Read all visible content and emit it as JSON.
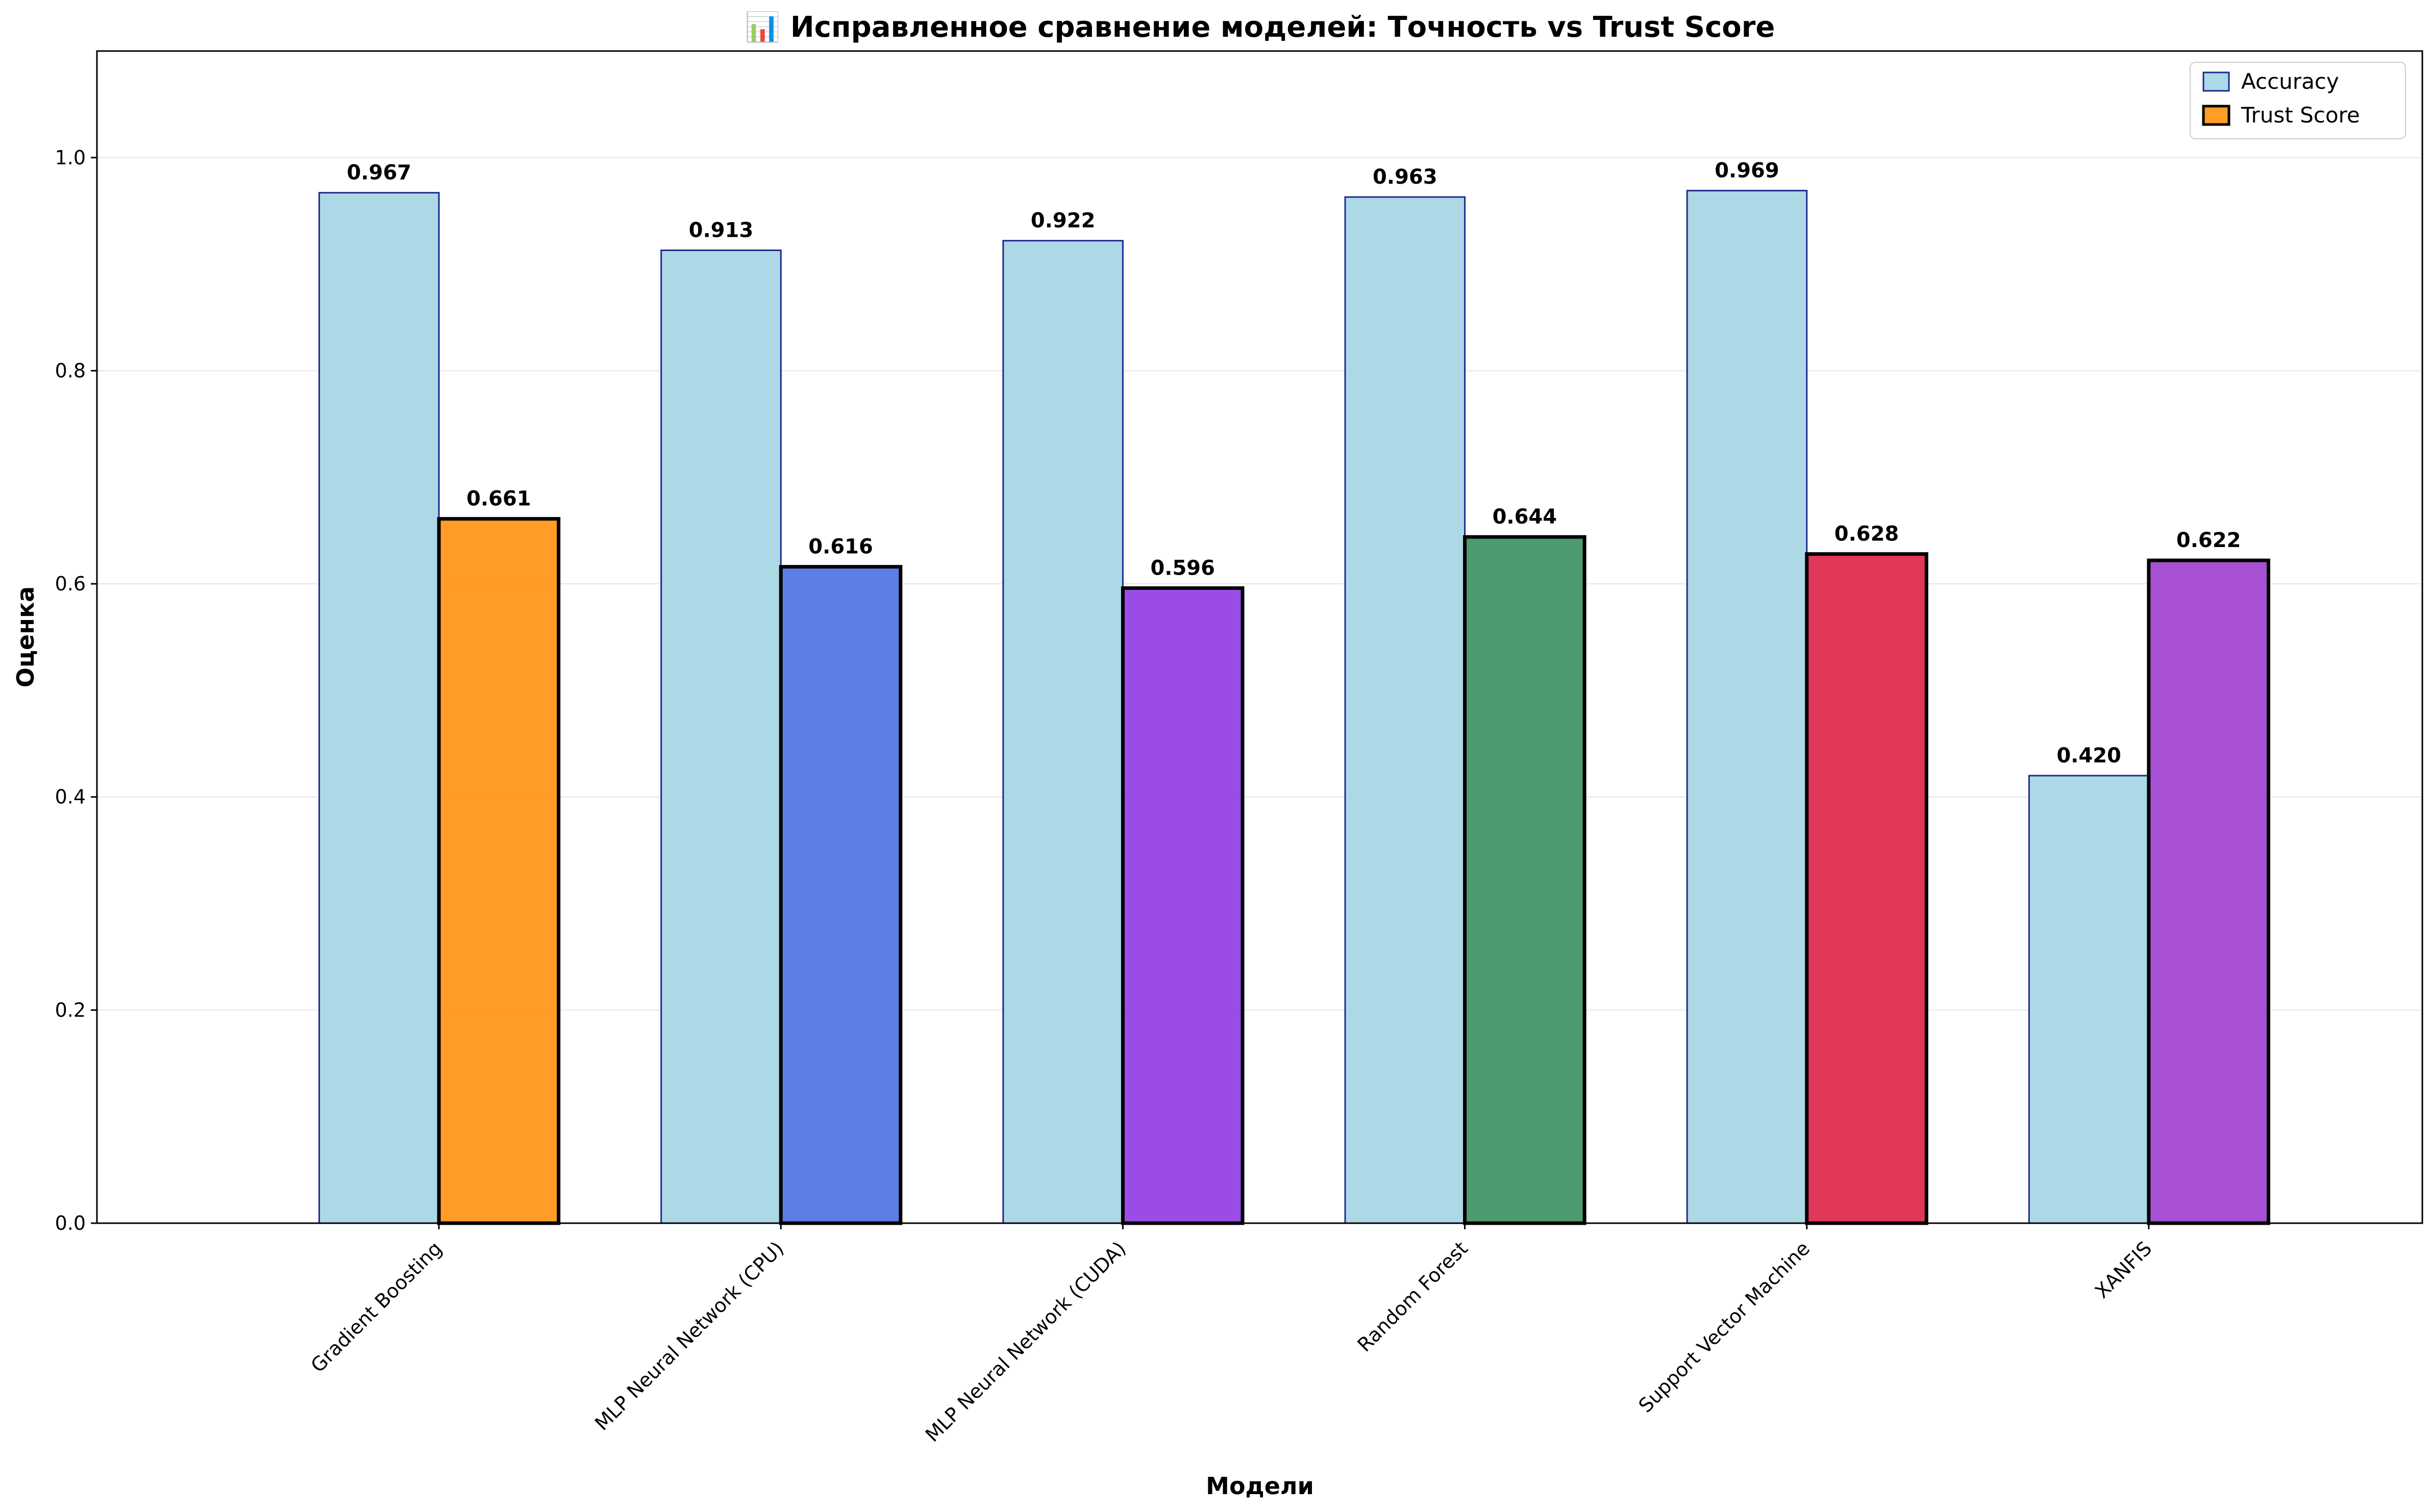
{
  "chart_data": {
    "type": "bar",
    "title": "📊 Исправленное сравнение моделей: Точность vs Trust Score",
    "xlabel": "Модели",
    "ylabel": "Оценка",
    "ylim": [
      0,
      1.1
    ],
    "yticks": [
      "0.0",
      "0.2",
      "0.4",
      "0.6",
      "0.8",
      "1.0"
    ],
    "grid": "horizontal",
    "legend_position": "top-right",
    "categories": [
      "Gradient Boosting",
      "MLP Neural Network (CPU)",
      "MLP Neural Network (CUDA)",
      "Random Forest",
      "Support Vector Machine",
      "XANFIS"
    ],
    "series": [
      {
        "name": "Accuracy",
        "values": [
          0.967,
          0.913,
          0.922,
          0.963,
          0.969,
          0.42
        ],
        "labels": [
          "0.967",
          "0.913",
          "0.922",
          "0.963",
          "0.969",
          "0.420"
        ],
        "color": "#add8e6",
        "edge_color": "#1f2a8a"
      },
      {
        "name": "Trust Score",
        "values": [
          0.661,
          0.616,
          0.596,
          0.644,
          0.628,
          0.622
        ],
        "labels": [
          "0.661",
          "0.616",
          "0.596",
          "0.644",
          "0.628",
          "0.622"
        ],
        "colors": [
          "#ff8c00",
          "#4169e1",
          "#8a2be2",
          "#2e8b57",
          "#dc143c",
          "#9932cc"
        ],
        "legend_color": "#ff8c00",
        "edge_color": "#000000"
      }
    ]
  }
}
